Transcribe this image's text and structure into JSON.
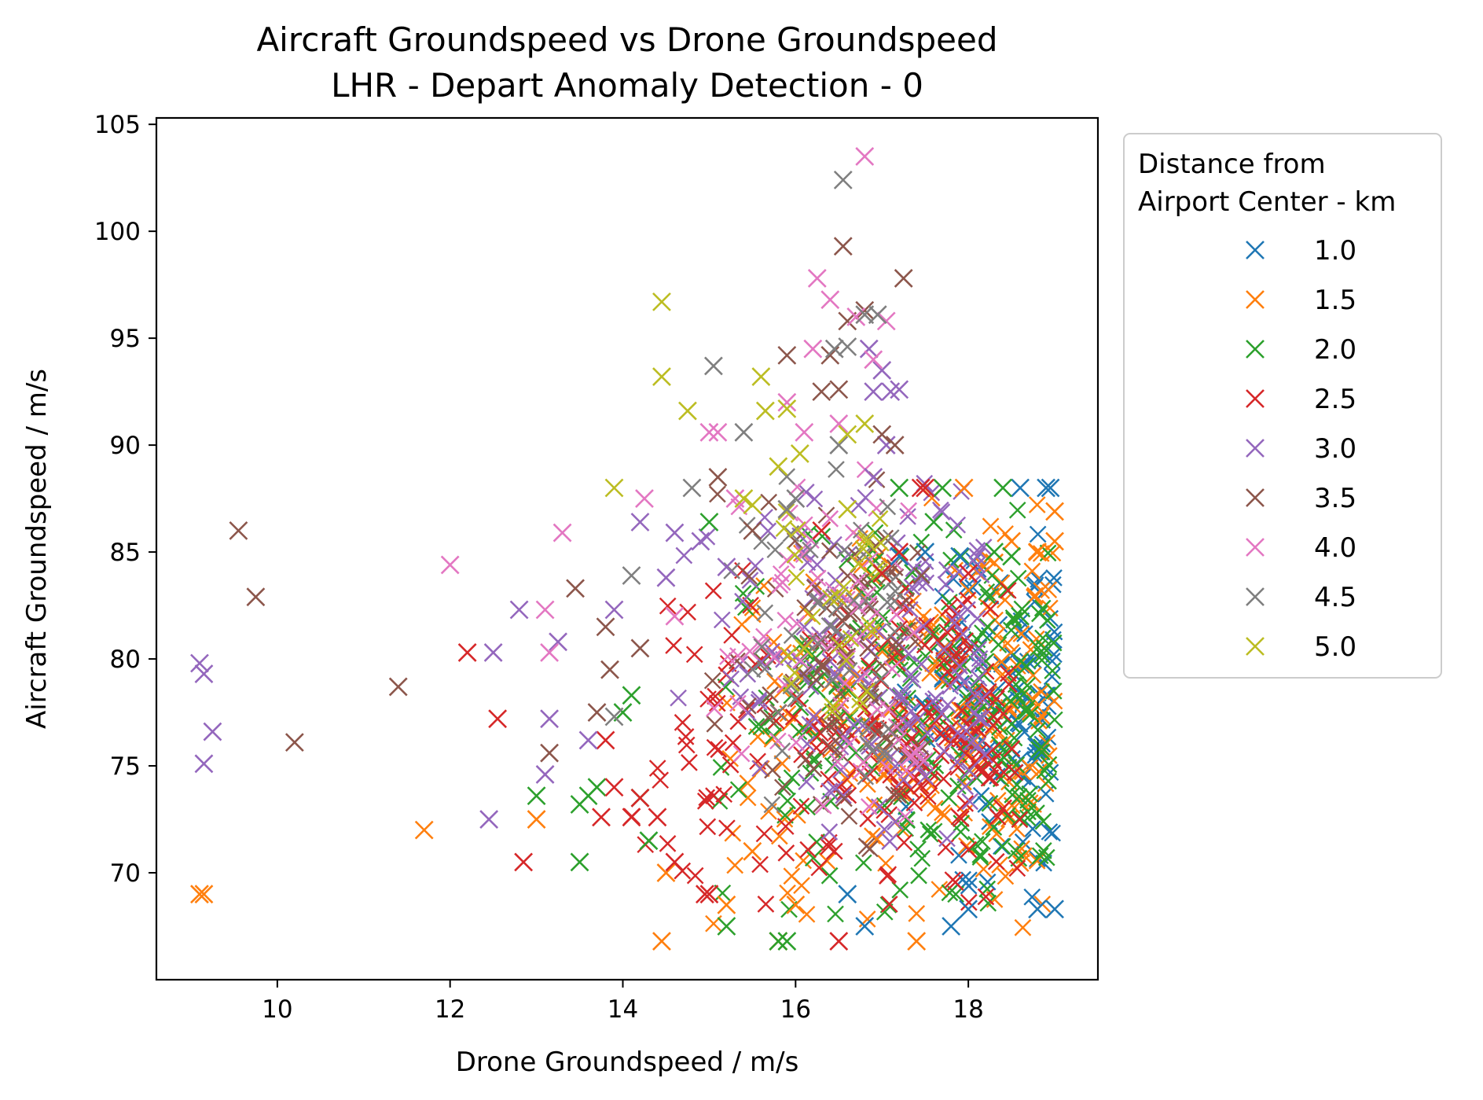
{
  "chart_data": {
    "type": "scatter",
    "title": "Aircraft Groundspeed vs Drone Groundspeed",
    "subtitle": "LHR - Depart Anomaly Detection - 0",
    "xlabel": "Drone Groundspeed / m/s",
    "ylabel": "Aircraft Groundspeed / m/s",
    "xlim": [
      8.6,
      19.5
    ],
    "ylim": [
      65.0,
      105.3
    ],
    "xticks": [
      10,
      12,
      14,
      16,
      18
    ],
    "yticks": [
      70,
      75,
      80,
      85,
      90,
      95,
      100,
      105
    ],
    "marker": "x",
    "grid": false,
    "legend": {
      "placement": "outside-right",
      "title_line1": "Distance from",
      "title_line2": "Airport Center - km"
    },
    "dense_regions": [
      {
        "series": "1.0",
        "x_range": [
          17.2,
          19.0
        ],
        "y_range": [
          67.2,
          88.0
        ],
        "density": 120
      },
      {
        "series": "1.5",
        "x_range": [
          15.0,
          19.0
        ],
        "y_range": [
          66.8,
          88.0
        ],
        "density": 220
      },
      {
        "series": "2.0",
        "x_range": [
          15.0,
          19.0
        ],
        "y_range": [
          67.0,
          88.0
        ],
        "density": 240
      },
      {
        "series": "2.5",
        "x_range": [
          14.0,
          18.6
        ],
        "y_range": [
          68.0,
          84.5
        ],
        "density": 200
      },
      {
        "series": "3.0",
        "x_range": [
          14.5,
          18.2
        ],
        "y_range": [
          69.5,
          89.0
        ],
        "density": 150
      },
      {
        "series": "3.5",
        "x_range": [
          14.8,
          17.5
        ],
        "y_range": [
          70.0,
          90.0
        ],
        "density": 80
      },
      {
        "series": "4.0",
        "x_range": [
          15.0,
          17.5
        ],
        "y_range": [
          71.0,
          90.5
        ],
        "density": 70
      },
      {
        "series": "4.5",
        "x_range": [
          15.2,
          17.2
        ],
        "y_range": [
          72.0,
          90.0
        ],
        "density": 50
      },
      {
        "series": "5.0",
        "x_range": [
          15.5,
          17.0
        ],
        "y_range": [
          76.0,
          89.0
        ],
        "density": 30
      }
    ],
    "series": [
      {
        "name": "1.0",
        "color": "#1f77b4",
        "points": [
          [
            18.9,
            88.0
          ],
          [
            18.95,
            88.0
          ],
          [
            18.6,
            88.0
          ],
          [
            17.2,
            84.8
          ],
          [
            17.9,
            84.8
          ],
          [
            17.8,
            67.5
          ],
          [
            17.5,
            85.0
          ],
          [
            16.6,
            69.0
          ],
          [
            16.8,
            67.5
          ],
          [
            18.0,
            68.3
          ],
          [
            19.0,
            68.3
          ],
          [
            18.8,
            68.3
          ]
        ]
      },
      {
        "name": "1.5",
        "color": "#ff7f0e",
        "points": [
          [
            9.1,
            69.0
          ],
          [
            9.15,
            69.0
          ],
          [
            11.7,
            72.0
          ],
          [
            13.0,
            72.5
          ],
          [
            14.45,
            66.8
          ],
          [
            14.5,
            70.0
          ],
          [
            15.2,
            68.5
          ],
          [
            15.5,
            71.0
          ],
          [
            15.8,
            66.8
          ],
          [
            16.0,
            68.5
          ],
          [
            17.4,
            66.8
          ],
          [
            17.95,
            88.0
          ],
          [
            18.5,
            85.5
          ],
          [
            18.8,
            85.0
          ],
          [
            19.0,
            86.9
          ],
          [
            18.3,
            84.5
          ],
          [
            19.0,
            85.5
          ]
        ]
      },
      {
        "name": "2.0",
        "color": "#2ca02c",
        "points": [
          [
            13.0,
            73.6
          ],
          [
            13.5,
            73.2
          ],
          [
            13.6,
            73.6
          ],
          [
            13.7,
            74.0
          ],
          [
            13.5,
            70.5
          ],
          [
            14.0,
            77.5
          ],
          [
            14.1,
            78.3
          ],
          [
            14.2,
            73.5
          ],
          [
            14.3,
            71.5
          ],
          [
            15.0,
            86.4
          ],
          [
            15.2,
            67.5
          ],
          [
            15.8,
            66.8
          ],
          [
            15.9,
            66.8
          ],
          [
            17.2,
            88.0
          ],
          [
            17.6,
            86.4
          ],
          [
            17.7,
            88.0
          ],
          [
            18.4,
            88.0
          ],
          [
            18.3,
            85.0
          ],
          [
            18.5,
            84.8
          ],
          [
            18.6,
            82.0
          ]
        ]
      },
      {
        "name": "2.5",
        "color": "#d62728",
        "points": [
          [
            12.2,
            80.3
          ],
          [
            12.55,
            77.2
          ],
          [
            12.85,
            70.5
          ],
          [
            13.75,
            72.6
          ],
          [
            13.8,
            76.2
          ],
          [
            13.9,
            74.0
          ],
          [
            14.1,
            72.6
          ],
          [
            14.2,
            73.5
          ],
          [
            14.4,
            72.6
          ],
          [
            14.6,
            70.5
          ],
          [
            14.95,
            69.0
          ],
          [
            15.0,
            69.0
          ],
          [
            16.5,
            66.8
          ],
          [
            17.5,
            88.0
          ],
          [
            17.45,
            88.0
          ],
          [
            16.3,
            86.0
          ],
          [
            17.0,
            84.0
          ],
          [
            17.2,
            85.0
          ],
          [
            18.0,
            84.0
          ],
          [
            18.4,
            73.0
          ]
        ]
      },
      {
        "name": "3.0",
        "color": "#9467bd",
        "points": [
          [
            9.1,
            79.8
          ],
          [
            9.15,
            79.3
          ],
          [
            9.25,
            76.6
          ],
          [
            9.15,
            75.1
          ],
          [
            12.45,
            72.5
          ],
          [
            12.5,
            80.3
          ],
          [
            12.8,
            82.3
          ],
          [
            13.1,
            74.6
          ],
          [
            13.15,
            77.2
          ],
          [
            13.25,
            80.8
          ],
          [
            13.6,
            76.2
          ],
          [
            13.9,
            82.3
          ],
          [
            14.2,
            86.4
          ],
          [
            14.5,
            83.8
          ],
          [
            14.6,
            85.9
          ],
          [
            14.9,
            85.5
          ],
          [
            15.2,
            84.3
          ],
          [
            16.9,
            92.5
          ],
          [
            17.0,
            93.5
          ],
          [
            17.1,
            92.5
          ],
          [
            17.05,
            90.0
          ],
          [
            16.85,
            94.5
          ],
          [
            17.2,
            92.6
          ],
          [
            16.9,
            88.5
          ]
        ]
      },
      {
        "name": "3.5",
        "color": "#8c564b",
        "points": [
          [
            9.55,
            86.0
          ],
          [
            9.75,
            82.9
          ],
          [
            10.2,
            76.1
          ],
          [
            11.4,
            78.7
          ],
          [
            13.15,
            75.6
          ],
          [
            13.45,
            83.3
          ],
          [
            13.7,
            77.5
          ],
          [
            13.8,
            81.5
          ],
          [
            13.85,
            79.5
          ],
          [
            14.2,
            80.5
          ],
          [
            15.1,
            88.5
          ],
          [
            15.5,
            86.0
          ],
          [
            15.9,
            94.2
          ],
          [
            16.3,
            92.5
          ],
          [
            16.4,
            94.2
          ],
          [
            16.5,
            92.6
          ],
          [
            16.55,
            99.3
          ],
          [
            16.6,
            95.8
          ],
          [
            16.8,
            96.3
          ],
          [
            17.0,
            90.5
          ],
          [
            17.15,
            90.0
          ],
          [
            17.25,
            97.8
          ]
        ]
      },
      {
        "name": "4.0",
        "color": "#e377c2",
        "points": [
          [
            12.0,
            84.4
          ],
          [
            13.1,
            82.3
          ],
          [
            13.15,
            80.3
          ],
          [
            13.3,
            85.9
          ],
          [
            14.25,
            87.5
          ],
          [
            14.6,
            82.0
          ],
          [
            15.0,
            90.6
          ],
          [
            15.1,
            90.6
          ],
          [
            15.3,
            87.5
          ],
          [
            15.9,
            92.0
          ],
          [
            16.1,
            90.6
          ],
          [
            16.2,
            94.5
          ],
          [
            16.25,
            97.8
          ],
          [
            16.4,
            96.8
          ],
          [
            16.7,
            96.0
          ],
          [
            16.8,
            103.5
          ],
          [
            16.9,
            94.0
          ],
          [
            17.05,
            95.8
          ],
          [
            16.5,
            91.0
          ]
        ]
      },
      {
        "name": "4.5",
        "color": "#7f7f7f",
        "points": [
          [
            13.9,
            77.3
          ],
          [
            14.1,
            83.9
          ],
          [
            14.8,
            88.0
          ],
          [
            15.05,
            93.7
          ],
          [
            15.4,
            90.6
          ],
          [
            16.45,
            94.5
          ],
          [
            16.6,
            94.6
          ],
          [
            16.55,
            102.4
          ],
          [
            16.8,
            96.1
          ],
          [
            16.95,
            96.1
          ],
          [
            16.5,
            90.0
          ],
          [
            16.0,
            87.5
          ],
          [
            15.9,
            87.0
          ]
        ]
      },
      {
        "name": "5.0",
        "color": "#bcbd22",
        "points": [
          [
            13.9,
            88.0
          ],
          [
            14.45,
            96.7
          ],
          [
            14.45,
            93.2
          ],
          [
            14.75,
            91.6
          ],
          [
            15.4,
            87.5
          ],
          [
            15.5,
            87.2
          ],
          [
            15.6,
            93.2
          ],
          [
            15.65,
            91.6
          ],
          [
            15.8,
            89.0
          ],
          [
            15.9,
            91.7
          ],
          [
            16.05,
            89.6
          ],
          [
            16.1,
            80.5
          ],
          [
            16.6,
            90.5
          ],
          [
            16.8,
            91.0
          ],
          [
            16.6,
            87.0
          ]
        ]
      }
    ]
  }
}
